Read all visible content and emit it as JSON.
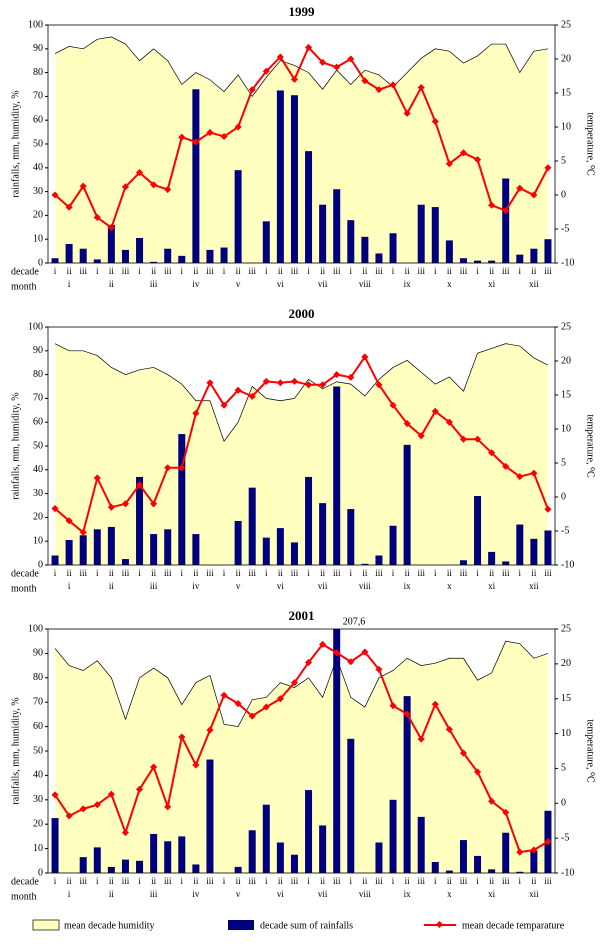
{
  "chart_data": [
    {
      "type": "combo",
      "title": "1999",
      "ylabel": "rainfalls, mm, humidity, %",
      "y2label": "temperature, ⁰C",
      "row_labels": [
        "decade",
        "month"
      ],
      "categories": [
        "i",
        "ii",
        "iii",
        "i",
        "ii",
        "iii",
        "i",
        "ii",
        "iii",
        "i",
        "ii",
        "iii",
        "i",
        "ii",
        "iii",
        "i",
        "ii",
        "iii",
        "i",
        "ii",
        "iii",
        "i",
        "ii",
        "iii",
        "i",
        "ii",
        "iii",
        "i",
        "ii",
        "iii",
        "i",
        "ii",
        "iii",
        "i",
        "ii",
        "iii"
      ],
      "months": [
        "i",
        "ii",
        "iii",
        "iv",
        "v",
        "vi",
        "vii",
        "viii",
        "ix",
        "x",
        "xi",
        "xii"
      ],
      "ylim": [
        0,
        100
      ],
      "yticks": [
        0,
        10,
        20,
        30,
        40,
        50,
        60,
        70,
        80,
        90,
        100
      ],
      "y2lim": [
        -10,
        25
      ],
      "y2ticks": [
        -10,
        -5,
        0,
        5,
        10,
        15,
        20,
        25
      ],
      "series": [
        {
          "name": "mean decade humidity",
          "kind": "area",
          "color": "#ffffc0",
          "values": [
            88,
            91,
            90,
            94,
            95,
            92,
            85,
            90,
            85,
            75,
            80,
            77,
            72,
            79,
            70,
            78,
            85,
            83,
            80,
            73,
            81,
            75,
            81,
            79,
            74,
            80,
            86,
            90,
            89,
            84,
            87,
            92,
            92,
            80,
            89,
            90
          ]
        },
        {
          "name": "decade sum of rainfalls",
          "kind": "bar",
          "color": "#00007f",
          "values": [
            2,
            8,
            6,
            1.5,
            16,
            5.5,
            10.5,
            0.5,
            6,
            3,
            73,
            5.5,
            6.5,
            39,
            0,
            17.5,
            72.5,
            70.5,
            47,
            24.5,
            31,
            18,
            11,
            4,
            12.5,
            0,
            24.5,
            23.5,
            9.5,
            2,
            1,
            1,
            35.5,
            3.5,
            6,
            10
          ]
        },
        {
          "name": "mean decade temparature",
          "kind": "line",
          "color": "#ff0000",
          "axis": "y2",
          "values": [
            0,
            -1.8,
            1.3,
            -3.3,
            -4.8,
            1.2,
            3.3,
            1.5,
            0.8,
            8.5,
            7.8,
            9.2,
            8.6,
            10,
            15.5,
            18.2,
            20.3,
            17,
            21.7,
            19.5,
            18.8,
            20,
            16.8,
            15.5,
            16.2,
            12,
            15.8,
            10.8,
            4.6,
            6.2,
            5.2,
            -1.5,
            -2.3,
            1,
            0,
            4
          ]
        }
      ]
    },
    {
      "type": "combo",
      "title": "2000",
      "ylabel": "rainfalls, mm, humidity, %",
      "y2label": "temperature, ⁰C",
      "row_labels": [
        "decade",
        "month"
      ],
      "categories": [
        "i",
        "ii",
        "iii",
        "i",
        "ii",
        "iii",
        "i",
        "ii",
        "iii",
        "i",
        "ii",
        "iii",
        "i",
        "ii",
        "iii",
        "i",
        "ii",
        "iii",
        "i",
        "ii",
        "iii",
        "i",
        "ii",
        "iii",
        "i",
        "ii",
        "iii",
        "i",
        "ii",
        "iii",
        "i",
        "ii",
        "iii",
        "i",
        "ii",
        "iii"
      ],
      "months": [
        "i",
        "ii",
        "iii",
        "iv",
        "v",
        "vi",
        "vii",
        "viii",
        "ix",
        "x",
        "xi",
        "xii"
      ],
      "ylim": [
        0,
        100
      ],
      "yticks": [
        0,
        10,
        20,
        30,
        40,
        50,
        60,
        70,
        80,
        90,
        100
      ],
      "y2lim": [
        -10,
        25
      ],
      "y2ticks": [
        -10,
        -5,
        0,
        5,
        10,
        15,
        20,
        25
      ],
      "series": [
        {
          "kind": "area",
          "color": "#ffffc0",
          "values": [
            93,
            90,
            90,
            88,
            83,
            80,
            82,
            83,
            80,
            76,
            69,
            69,
            52,
            60,
            75,
            70,
            69,
            70,
            78,
            74,
            77,
            76,
            71,
            78,
            83,
            86,
            81,
            76,
            79,
            73,
            89,
            91,
            93,
            92,
            87,
            84
          ]
        },
        {
          "kind": "bar",
          "color": "#00007f",
          "values": [
            4,
            10.5,
            12.5,
            15,
            16,
            2.5,
            37,
            13,
            15,
            55,
            13,
            0,
            0,
            18.5,
            32.5,
            11.5,
            15.5,
            9.5,
            37,
            26,
            75,
            23.5,
            0.5,
            4,
            16.5,
            50.5,
            0,
            0,
            0,
            2,
            29,
            5.5,
            1.5,
            17,
            11,
            14.5
          ]
        },
        {
          "kind": "line",
          "color": "#ff0000",
          "axis": "y2",
          "values": [
            -1.7,
            -3.5,
            -5.2,
            2.8,
            -1.5,
            -1,
            1.8,
            -1,
            4.3,
            4.3,
            12.3,
            16.8,
            13.5,
            15.7,
            14.8,
            17,
            16.8,
            17,
            16.5,
            16.5,
            18,
            17.6,
            20.6,
            16.5,
            13.5,
            10.8,
            9,
            12.6,
            11,
            8.5,
            8.5,
            6.5,
            4.5,
            3,
            3.5,
            -1.8
          ]
        }
      ]
    },
    {
      "type": "combo",
      "title": "2001",
      "ylabel": "rainfalls, mm, humidity, %",
      "y2label": "temperature, ⁰C",
      "row_labels": [
        "decade",
        "month"
      ],
      "categories": [
        "i",
        "ii",
        "iii",
        "i",
        "ii",
        "iii",
        "i",
        "ii",
        "iii",
        "i",
        "ii",
        "iii",
        "i",
        "ii",
        "iii",
        "i",
        "ii",
        "iii",
        "i",
        "ii",
        "iii",
        "i",
        "ii",
        "iii",
        "i",
        "ii",
        "iii",
        "i",
        "ii",
        "iii",
        "i",
        "ii",
        "iii",
        "i",
        "ii",
        "iii"
      ],
      "months": [
        "i",
        "ii",
        "iii",
        "iv",
        "v",
        "vi",
        "vii",
        "viii",
        "ix",
        "x",
        "xi",
        "xii"
      ],
      "ylim": [
        0,
        100
      ],
      "yticks": [
        0,
        10,
        20,
        30,
        40,
        50,
        60,
        70,
        80,
        90,
        100
      ],
      "y2lim": [
        -10,
        25
      ],
      "y2ticks": [
        -10,
        -5,
        0,
        5,
        10,
        15,
        20,
        25
      ],
      "series": [
        {
          "kind": "area",
          "color": "#ffffc0",
          "values": [
            92,
            85,
            83,
            87,
            80,
            63,
            80,
            84,
            80,
            69,
            78,
            81,
            61,
            60,
            71,
            72,
            78,
            76,
            80,
            72,
            88,
            72,
            68,
            80,
            83,
            88,
            85,
            86,
            88,
            88,
            79,
            82,
            95,
            94,
            88,
            90
          ]
        },
        {
          "kind": "bar",
          "color": "#00007f",
          "values": [
            22.5,
            0,
            6.5,
            10.5,
            2.5,
            5.5,
            5,
            16,
            13,
            15,
            3.5,
            46.5,
            0,
            2.5,
            17.5,
            28,
            12.5,
            7.5,
            34,
            19.5,
            207.6,
            55,
            0,
            12.5,
            30,
            72.5,
            23,
            4.5,
            1,
            13.5,
            7,
            1.5,
            16.5,
            0.5,
            9,
            25.5
          ],
          "value_labels": [
            null,
            null,
            null,
            null,
            null,
            null,
            null,
            null,
            null,
            null,
            null,
            null,
            null,
            null,
            null,
            null,
            null,
            null,
            null,
            null,
            "207,6",
            null,
            null,
            null,
            null,
            null,
            null,
            null,
            null,
            null,
            null,
            null,
            null,
            null,
            null,
            null
          ]
        },
        {
          "kind": "line",
          "color": "#ff0000",
          "axis": "y2",
          "values": [
            1.2,
            -1.8,
            -0.8,
            -0.2,
            1.3,
            -4.2,
            2,
            5.2,
            -0.5,
            9.5,
            5.5,
            10.5,
            15.5,
            14.3,
            12.5,
            13.8,
            15,
            17.3,
            20.2,
            22.8,
            21.6,
            20.3,
            21.7,
            19.2,
            14,
            12.8,
            9.2,
            14.2,
            10.6,
            7.2,
            4.5,
            0.3,
            -1.3,
            -7,
            -6.7,
            -5.5
          ]
        }
      ]
    }
  ]
}
